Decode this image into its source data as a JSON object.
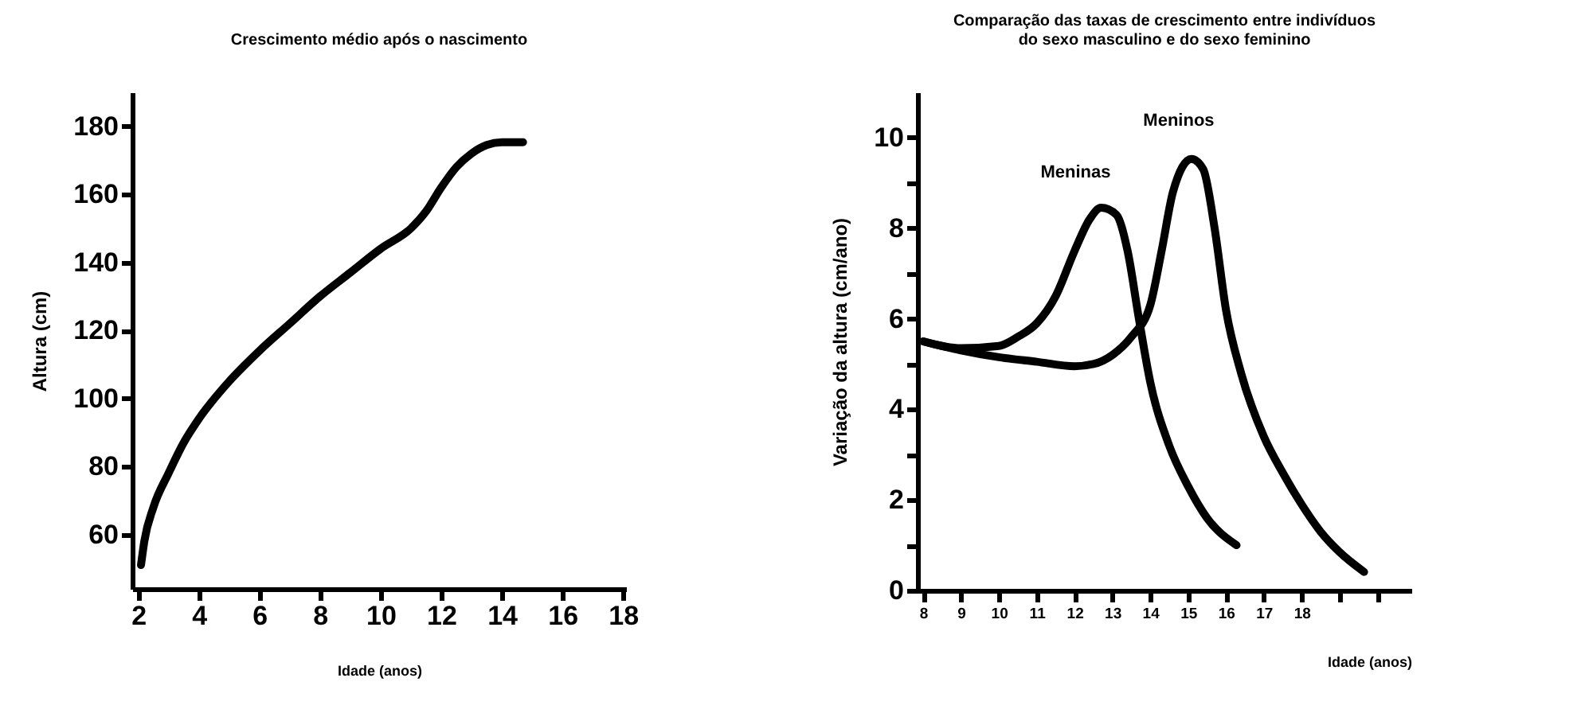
{
  "chart_data": [
    {
      "type": "line",
      "title": "Crescimento médio após o nascimento",
      "xlabel": "Idade (anos)",
      "ylabel": "Altura (cm)",
      "xlim": [
        1.8,
        18.1
      ],
      "ylim": [
        44,
        190
      ],
      "xticks": [
        2,
        4,
        6,
        8,
        10,
        12,
        14,
        16,
        18
      ],
      "yticks": [
        60,
        80,
        100,
        120,
        140,
        160,
        180
      ],
      "grid": false,
      "line_style": "solid",
      "series": [
        {
          "color": "#000000",
          "x": [
            2.09,
            2.2,
            2.5,
            3,
            3.5,
            4,
            5,
            6,
            7,
            8,
            9,
            10,
            11,
            11.5,
            12,
            12.5,
            13,
            13.5,
            14,
            14.7
          ],
          "values": [
            51,
            58,
            68,
            78,
            87,
            94,
            105,
            114,
            122,
            130,
            137,
            144,
            150,
            155,
            162,
            168,
            172,
            174.5,
            175.3,
            175.3
          ]
        }
      ]
    },
    {
      "type": "line",
      "title": "Comparação das taxas de crescimento entre indivíduos\ndo sexo masculino e do sexo feminino",
      "xlabel": "Idade (anos)",
      "ylabel": "Variação da altura (cm/ano)",
      "xlim": [
        7.85,
        20.9
      ],
      "ylim": [
        0,
        11
      ],
      "xticks": [
        8,
        9,
        10,
        11,
        12,
        13,
        14,
        15,
        16,
        17,
        18,
        {
          "value": 19,
          "label": null
        },
        {
          "value": 20,
          "label": null
        }
      ],
      "yticks": [
        0,
        {
          "value": 1,
          "label": null
        },
        2,
        {
          "value": 3,
          "label": null
        },
        4,
        {
          "value": 5,
          "label": null
        },
        6,
        {
          "value": 7,
          "label": null
        },
        8,
        {
          "value": 9,
          "label": null
        },
        10
      ],
      "grid": false,
      "line_style": "solid",
      "series": [
        {
          "name": "Meninas",
          "color": "#000000",
          "x": [
            8,
            9,
            10,
            10.5,
            11,
            11.5,
            12,
            12.4,
            12.7,
            13.1,
            13.4,
            13.7,
            14,
            14.5,
            15,
            15.5,
            16.28
          ],
          "values": [
            5.5,
            5.35,
            5.4,
            5.6,
            5.9,
            6.5,
            7.5,
            8.2,
            8.45,
            8.3,
            7.5,
            6,
            4.6,
            3.2,
            2.3,
            1.6,
            1.0
          ]
        },
        {
          "name": "Meninos",
          "color": "#000000",
          "x": [
            8,
            9,
            10,
            11,
            12,
            12.5,
            13,
            13.5,
            14,
            14.3,
            14.6,
            15.09,
            15.4,
            15.7,
            16,
            16.4,
            17,
            17.5,
            18,
            18.5,
            19,
            19.65
          ],
          "values": [
            5.5,
            5.3,
            5.15,
            5.05,
            4.95,
            5.0,
            5.2,
            5.6,
            6.3,
            7.5,
            8.8,
            9.53,
            9.3,
            8,
            6.2,
            4.8,
            3.4,
            2.6,
            1.9,
            1.3,
            0.85,
            0.41
          ]
        }
      ]
    }
  ]
}
